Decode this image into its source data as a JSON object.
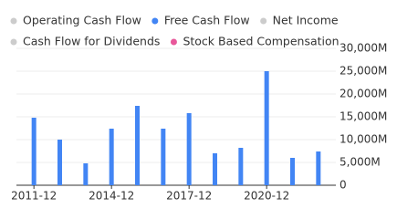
{
  "chart_data": {
    "type": "bar",
    "categories": [
      "2011-12",
      null,
      null,
      "2014-12",
      null,
      null,
      "2017-12",
      null,
      null,
      "2020-12",
      null,
      null
    ],
    "series": [
      {
        "name": "Operating Cash Flow",
        "color": "#cccccc",
        "visible": false
      },
      {
        "name": "Free Cash Flow",
        "color": "#4285f4",
        "visible": true,
        "values": [
          14800,
          10000,
          4800,
          12400,
          17400,
          12400,
          15800,
          7000,
          8200,
          25000,
          6000,
          7400
        ]
      },
      {
        "name": "Net Income",
        "color": "#cccccc",
        "visible": false
      },
      {
        "name": "Cash Flow for Dividends",
        "color": "#cccccc",
        "visible": false
      },
      {
        "name": "Stock Based Compensation",
        "color": "#e8579a",
        "visible": true
      }
    ],
    "ylim": [
      0,
      30000
    ],
    "yticks": [
      0,
      {
        "value": 5000,
        "label": "5,000M"
      },
      {
        "value": 10000,
        "label": "10,000M"
      },
      {
        "value": 15000,
        "label": "15,000M"
      },
      {
        "value": 20000,
        "label": "20,000M"
      },
      {
        "value": 25000,
        "label": "25,000M"
      },
      {
        "value": 30000,
        "label": "30,000M"
      }
    ],
    "grid": true
  }
}
